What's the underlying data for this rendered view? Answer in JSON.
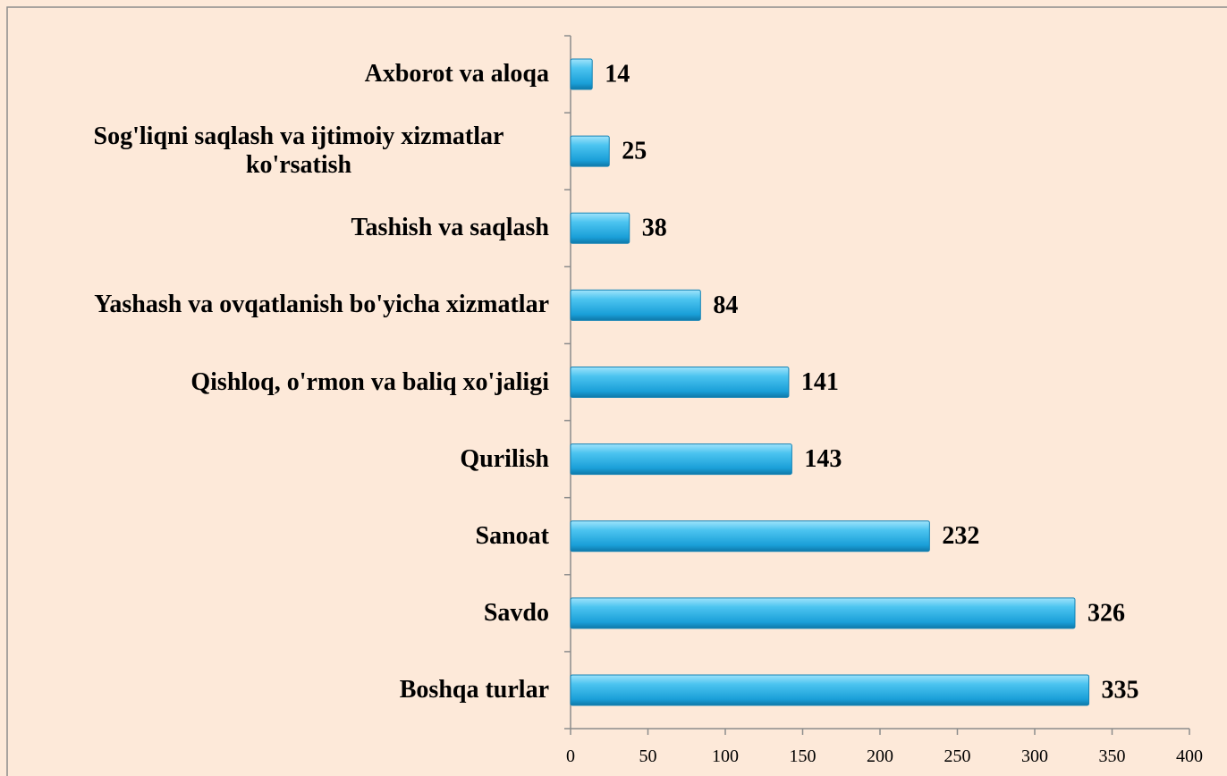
{
  "chart_data": {
    "type": "barh",
    "categories": [
      "Axborot va aloqa",
      "Sog'liqni saqlash va ijtimoiy xizmatlar ko'rsatish",
      "Tashish va saqlash",
      "Yashash va ovqatlanish bo'yicha xizmatlar",
      "Qishloq, o'rmon va baliq xo'jaligi",
      "Qurilish",
      "Sanoat",
      "Savdo",
      "Boshqa turlar"
    ],
    "values": [
      14,
      25,
      38,
      84,
      141,
      143,
      232,
      326,
      335
    ],
    "color": "#35b6ea",
    "xlim": [
      0,
      400
    ],
    "xticks": [
      0,
      50,
      100,
      150,
      200,
      250,
      300,
      350,
      400
    ]
  }
}
